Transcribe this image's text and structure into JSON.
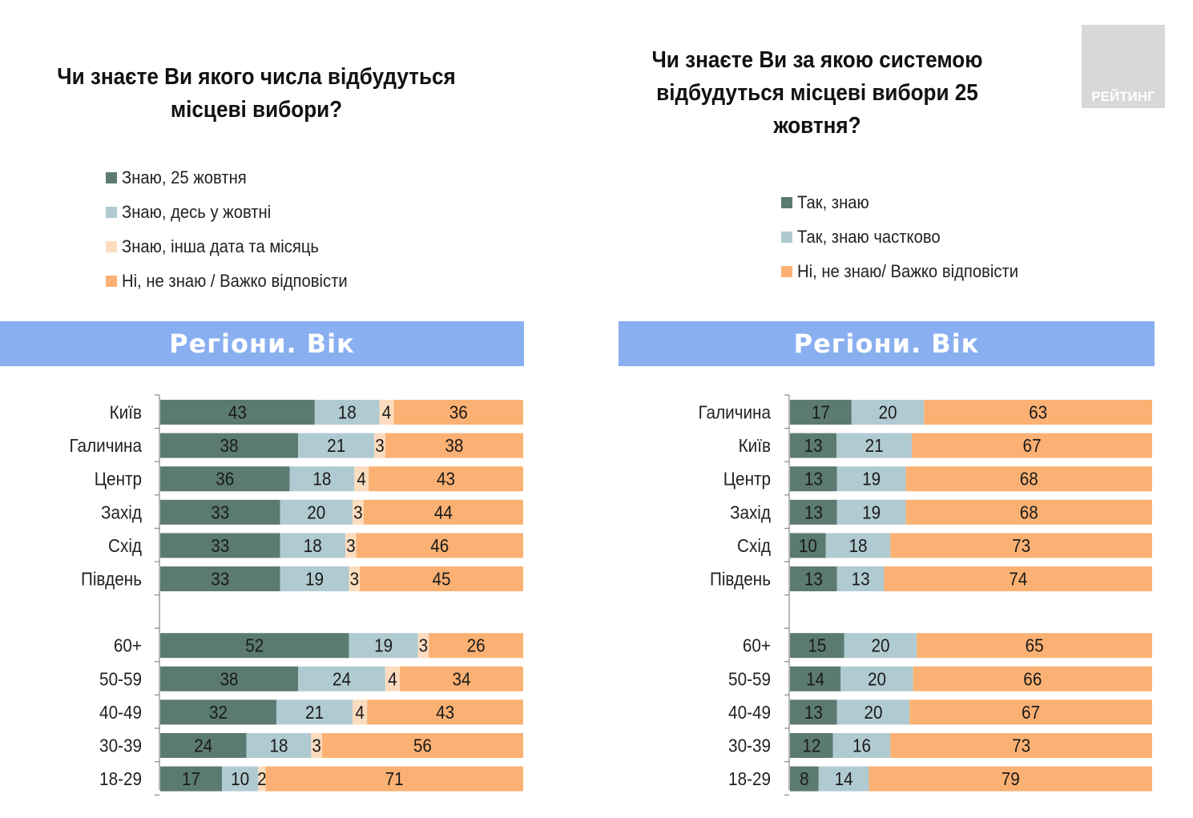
{
  "logo": {
    "text": "РЕЙТИНГ"
  },
  "colors": {
    "dark_green": "#5b7b72",
    "light_blue": "#b0cad1",
    "pale_peach": "#fcdcbe",
    "orange": "#fbb173",
    "band_blue": "#89aff0"
  },
  "left_panel": {
    "title_line1": "Чи знаєте Ви якого числа відбудуться",
    "title_line2": "місцеві вибори?",
    "band_label": "Регіони. Вік",
    "legend": [
      {
        "label": "Знаю, 25 жовтня",
        "color": "#5b7b72"
      },
      {
        "label": "Знаю, десь у жовтні",
        "color": "#b0cad1"
      },
      {
        "label": "Знаю, інша дата та місяць",
        "color": "#fcdcbe"
      },
      {
        "label": "Ні, не знаю / Важко відповісти",
        "color": "#fbb173"
      }
    ]
  },
  "right_panel": {
    "title_line1": "Чи знаєте Ви за якою системою",
    "title_line2": "відбудуться місцеві вибори 25",
    "title_line3": "жовтня?",
    "band_label": "Регіони. Вік",
    "legend": [
      {
        "label": "Так, знаю",
        "color": "#5b7b72"
      },
      {
        "label": "Так, знаю частково",
        "color": "#b0cad1"
      },
      {
        "label": "Ні, не знаю/ Важко відповісти",
        "color": "#fbb173"
      }
    ]
  },
  "chart_data": [
    {
      "type": "bar",
      "orientation": "horizontal",
      "stacked": "100%",
      "title": "Чи знаєте Ви якого числа відбудуться місцеві вибори?",
      "subtitle": "Регіони. Вік",
      "legend_position": "top",
      "xlim": [
        0,
        100
      ],
      "categories": [
        "Київ",
        "Галичина",
        "Центр",
        "Захід",
        "Схід",
        "Південь",
        "",
        "60+",
        "50-59",
        "40-49",
        "30-39",
        "18-29"
      ],
      "series": [
        {
          "name": "Знаю, 25 жовтня",
          "color": "#5b7b72",
          "values": [
            43,
            38,
            36,
            33,
            33,
            33,
            null,
            52,
            38,
            32,
            24,
            17
          ]
        },
        {
          "name": "Знаю, десь у жовтні",
          "color": "#b0cad1",
          "values": [
            18,
            21,
            18,
            20,
            18,
            19,
            null,
            19,
            24,
            21,
            18,
            10
          ]
        },
        {
          "name": "Знаю, інша дата та місяць",
          "color": "#fcdcbe",
          "values": [
            4,
            3,
            4,
            3,
            3,
            3,
            null,
            3,
            4,
            4,
            3,
            2
          ]
        },
        {
          "name": "Ні, не знаю / Важко відповісти",
          "color": "#fbb173",
          "values": [
            36,
            38,
            43,
            44,
            46,
            45,
            null,
            26,
            34,
            43,
            56,
            71
          ]
        }
      ]
    },
    {
      "type": "bar",
      "orientation": "horizontal",
      "stacked": "100%",
      "title": "Чи знаєте Ви за якою системою відбудуться місцеві вибори 25 жовтня?",
      "subtitle": "Регіони. Вік",
      "legend_position": "top",
      "xlim": [
        0,
        100
      ],
      "categories": [
        "Галичина",
        "Київ",
        "Центр",
        "Захід",
        "Схід",
        "Південь",
        "",
        "60+",
        "50-59",
        "40-49",
        "30-39",
        "18-29"
      ],
      "series": [
        {
          "name": "Так, знаю",
          "color": "#5b7b72",
          "values": [
            17,
            13,
            13,
            13,
            10,
            13,
            null,
            15,
            14,
            13,
            12,
            8
          ]
        },
        {
          "name": "Так, знаю частково",
          "color": "#b0cad1",
          "values": [
            20,
            21,
            19,
            19,
            18,
            13,
            null,
            20,
            20,
            20,
            16,
            14
          ]
        },
        {
          "name": "Ні, не знаю/ Важко відповісти",
          "color": "#fbb173",
          "values": [
            63,
            67,
            68,
            68,
            73,
            74,
            null,
            65,
            66,
            67,
            73,
            79
          ]
        }
      ]
    }
  ]
}
